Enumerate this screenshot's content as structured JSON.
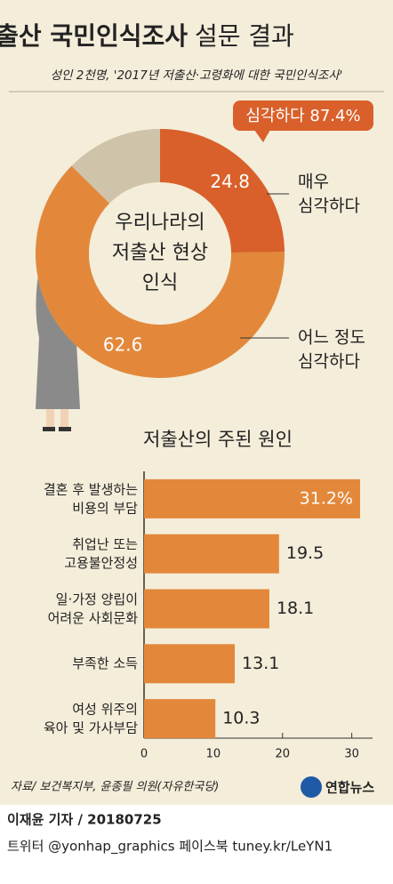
{
  "header": {
    "title_bold": "저출산 국민인식조사",
    "title_light": "설문 결과",
    "subtitle": "성인 2천명, '2017년 저출산·고령화에 대한 국민인식조사'"
  },
  "chart_data": [
    {
      "type": "donut",
      "annotation": "심각하다 87.4%",
      "center_label": [
        "우리나라의",
        "저출산 현상",
        "인식"
      ],
      "categories": [
        "매우\n심각하다",
        "어느 정도\n심각하다"
      ],
      "values": [
        24.8,
        62.6
      ],
      "colors": [
        "#d9602a",
        "#e3883b"
      ],
      "rest_color": "#cfc4a9"
    },
    {
      "type": "bar",
      "orientation": "horizontal",
      "title": "저출산의 주된 원인",
      "categories": [
        "결혼 후 발생하는\n비용의 부담",
        "취업난 또는\n고용불안정성",
        "일·가정 양립이\n어려운 사회문화",
        "부족한 소득",
        "여성 위주의\n육아 및 가사부담"
      ],
      "values": [
        31.2,
        19.5,
        18.1,
        13.1,
        10.3
      ],
      "value_labels": [
        "31.2%",
        "19.5",
        "18.1",
        "13.1",
        "10.3"
      ],
      "color": "#e3883b",
      "xlim": [
        0,
        33
      ],
      "xticks": [
        0,
        10,
        20,
        30
      ]
    }
  ],
  "source": "자료/ 보건복지부, 윤종필 의원(자유한국당)",
  "logo": "연합뉴스",
  "footer": {
    "byline": "이재윤 기자 / 20180725",
    "social": "트위터 @yonhap_graphics 페이스북 tuney.kr/LeYN1"
  }
}
